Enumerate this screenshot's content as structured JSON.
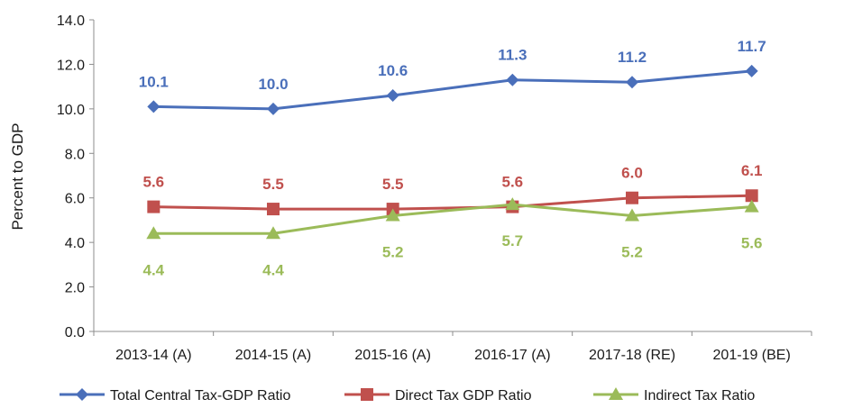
{
  "chart_data": {
    "type": "line",
    "title": "",
    "xlabel": "",
    "ylabel": "Percent to GDP",
    "ylim": [
      0,
      14
    ],
    "yticks": [
      "0.0",
      "2.0",
      "4.0",
      "6.0",
      "8.0",
      "10.0",
      "12.0",
      "14.0"
    ],
    "categories": [
      "2013-14 (A)",
      "2014-15 (A)",
      "2015-16 (A)",
      "2016-17 (A)",
      "2017-18 (RE)",
      "201-19 (BE)"
    ],
    "legend_position": "bottom",
    "grid": false,
    "series": [
      {
        "name": "Total Central Tax-GDP Ratio",
        "color": "#4a6fba",
        "marker": "diamond",
        "values": [
          10.1,
          10.0,
          10.6,
          11.3,
          11.2,
          11.7
        ],
        "labels": [
          "10.1",
          "10.0",
          "10.6",
          "11.3",
          "11.2",
          "11.7"
        ],
        "label_position": "above"
      },
      {
        "name": "Direct Tax GDP Ratio",
        "color": "#c0504d",
        "marker": "square",
        "values": [
          5.6,
          5.5,
          5.5,
          5.6,
          6.0,
          6.1
        ],
        "labels": [
          "5.6",
          "5.5",
          "5.5",
          "5.6",
          "6.0",
          "6.1"
        ],
        "label_position": "above"
      },
      {
        "name": "Indirect Tax Ratio",
        "color": "#9bbb59",
        "marker": "triangle",
        "values": [
          4.4,
          4.4,
          5.2,
          5.7,
          5.2,
          5.6
        ],
        "labels": [
          "4.4",
          "4.4",
          "5.2",
          "5.7",
          "5.2",
          "5.6"
        ],
        "label_position": "below"
      }
    ]
  }
}
